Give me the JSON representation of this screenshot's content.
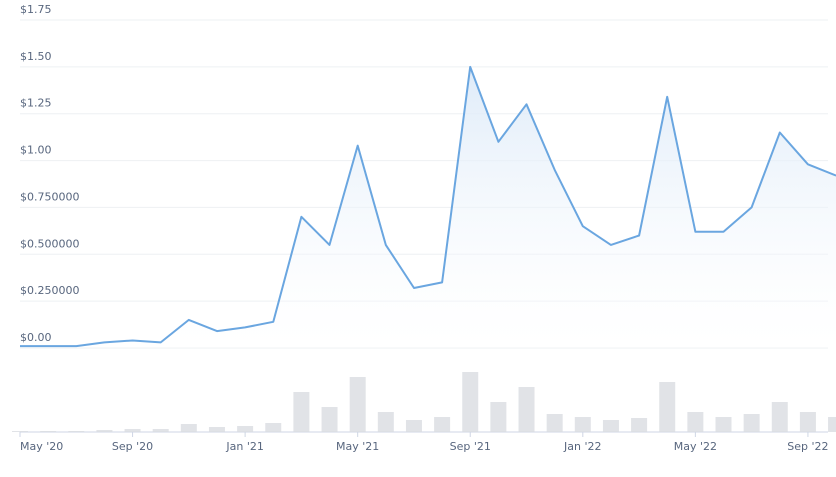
{
  "chart_data": {
    "type": "line",
    "x": [
      "2020-05",
      "2020-06",
      "2020-07",
      "2020-08",
      "2020-09",
      "2020-10",
      "2020-11",
      "2020-12",
      "2021-01",
      "2021-02",
      "2021-03",
      "2021-04",
      "2021-05",
      "2021-06",
      "2021-07",
      "2021-08",
      "2021-09",
      "2021-10",
      "2021-11",
      "2021-12",
      "2022-01",
      "2022-02",
      "2022-03",
      "2022-04",
      "2022-05",
      "2022-06",
      "2022-07",
      "2022-08",
      "2022-09",
      "2022-10"
    ],
    "values": [
      0.01,
      0.01,
      0.01,
      0.03,
      0.04,
      0.03,
      0.15,
      0.09,
      0.11,
      0.14,
      0.7,
      0.55,
      1.08,
      0.55,
      0.32,
      0.35,
      1.5,
      1.1,
      1.3,
      0.95,
      0.65,
      0.55,
      0.6,
      1.34,
      0.62,
      0.62,
      0.75,
      1.15,
      0.98,
      0.92
    ],
    "volume": [
      1,
      1,
      1,
      2,
      3,
      3,
      8,
      5,
      6,
      9,
      40,
      25,
      55,
      20,
      12,
      15,
      60,
      30,
      45,
      18,
      15,
      12,
      14,
      50,
      20,
      15,
      18,
      30,
      20,
      15
    ],
    "color": "#6aa6e0",
    "ylim": [
      0,
      1.75
    ],
    "yticks": [
      {
        "value": 0,
        "label": "$0.00"
      },
      {
        "value": 0.25,
        "label": "$0.250000"
      },
      {
        "value": 0.5,
        "label": "$0.500000"
      },
      {
        "value": 0.75,
        "label": "$0.750000"
      },
      {
        "value": 1,
        "label": "$1.00"
      },
      {
        "value": 1.25,
        "label": "$1.25"
      },
      {
        "value": 1.5,
        "label": "$1.50"
      },
      {
        "value": 1.75,
        "label": "$1.75"
      }
    ],
    "xticks": [
      {
        "value": "2020-05",
        "label": "May '20"
      },
      {
        "value": "2020-09",
        "label": "Sep '20"
      },
      {
        "value": "2021-01",
        "label": "Jan '21"
      },
      {
        "value": "2021-05",
        "label": "May '21"
      },
      {
        "value": "2021-09",
        "label": "Sep '21"
      },
      {
        "value": "2022-01",
        "label": "Jan '22"
      },
      {
        "value": "2022-05",
        "label": "May '22"
      },
      {
        "value": "2022-09",
        "label": "Sep '22"
      }
    ],
    "grid": true
  }
}
